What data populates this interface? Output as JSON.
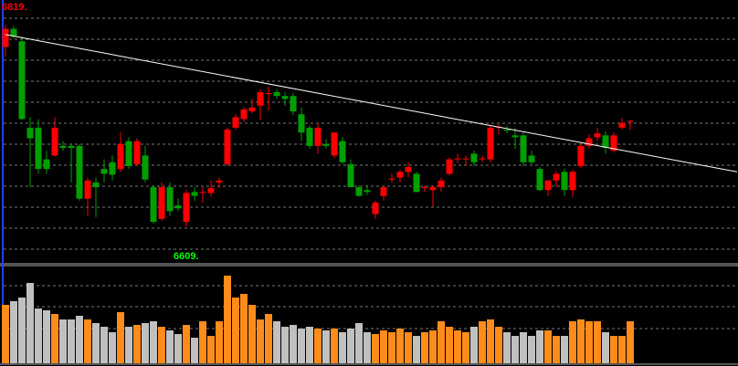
{
  "chart_data": {
    "type": "candlestick",
    "up_color": "#ff0000",
    "down_color": "#00a000",
    "volume_up_color": "#ff8c1a",
    "volume_down_color": "#c0c0c0",
    "trend_color": "#ffffff",
    "annotations": [
      {
        "text": "6819.",
        "color": "#ff0000"
      },
      {
        "text": "6609.",
        "color": "#00ff00"
      }
    ],
    "ylim": [
      6575,
      6845
    ],
    "vlim": [
      0,
      105
    ],
    "ohlc": [
      [
        6796,
        6819,
        6786,
        6815
      ],
      [
        6815,
        6818,
        6805,
        6807
      ],
      [
        6802,
        6807,
        6720,
        6721
      ],
      [
        6712,
        6723,
        6650,
        6701
      ],
      [
        6712,
        6721,
        6664,
        6669
      ],
      [
        6679,
        6688,
        6664,
        6669
      ],
      [
        6683,
        6723,
        6682,
        6712
      ],
      [
        6693,
        6698,
        6688,
        6691
      ],
      [
        6693,
        6695,
        6655,
        6691
      ],
      [
        6693,
        6695,
        6636,
        6638
      ],
      [
        6638,
        6660,
        6620,
        6657
      ],
      [
        6655,
        6660,
        6619,
        6650
      ],
      [
        6669,
        6679,
        6655,
        6664
      ],
      [
        6676,
        6683,
        6657,
        6663
      ],
      [
        6669,
        6707,
        6666,
        6695
      ],
      [
        6698,
        6702,
        6669,
        6672
      ],
      [
        6674,
        6701,
        6672,
        6698
      ],
      [
        6683,
        6693,
        6655,
        6658
      ],
      [
        6650,
        6652,
        6612,
        6614
      ],
      [
        6617,
        6655,
        6615,
        6650
      ],
      [
        6650,
        6655,
        6620,
        6625
      ],
      [
        6631,
        6638,
        6625,
        6628
      ],
      [
        6614,
        6647,
        6609,
        6644
      ],
      [
        6645,
        6650,
        6636,
        6641
      ],
      [
        6644,
        6650,
        6634,
        6645
      ],
      [
        6644,
        6657,
        6640,
        6649
      ],
      [
        6655,
        6660,
        6649,
        6657
      ],
      [
        6674,
        6712,
        6672,
        6710
      ],
      [
        6712,
        6726,
        6710,
        6723
      ],
      [
        6721,
        6733,
        6718,
        6731
      ],
      [
        6729,
        6742,
        6727,
        6733
      ],
      [
        6735,
        6752,
        6720,
        6749
      ],
      [
        6747,
        6755,
        6730,
        6748
      ],
      [
        6749,
        6752,
        6742,
        6745
      ],
      [
        6745,
        6749,
        6735,
        6742
      ],
      [
        6745,
        6748,
        6725,
        6729
      ],
      [
        6726,
        6733,
        6698,
        6707
      ],
      [
        6712,
        6714,
        6690,
        6693
      ],
      [
        6693,
        6717,
        6685,
        6712
      ],
      [
        6695,
        6700,
        6690,
        6693
      ],
      [
        6683,
        6707,
        6680,
        6707
      ],
      [
        6698,
        6702,
        6674,
        6676
      ],
      [
        6674,
        6679,
        6650,
        6650
      ],
      [
        6650,
        6652,
        6640,
        6641
      ],
      [
        6647,
        6652,
        6642,
        6645
      ],
      [
        6622,
        6636,
        6617,
        6634
      ],
      [
        6641,
        6650,
        6636,
        6650
      ],
      [
        6658,
        6664,
        6655,
        6659
      ],
      [
        6660,
        6668,
        6655,
        6666
      ],
      [
        6666,
        6676,
        6660,
        6671
      ],
      [
        6664,
        6666,
        6645,
        6645
      ],
      [
        6649,
        6652,
        6645,
        6650
      ],
      [
        6647,
        6652,
        6630,
        6650
      ],
      [
        6650,
        6660,
        6645,
        6657
      ],
      [
        6664,
        6681,
        6662,
        6679
      ],
      [
        6679,
        6685,
        6675,
        6680
      ],
      [
        6679,
        6683,
        6672,
        6680
      ],
      [
        6685,
        6688,
        6672,
        6676
      ],
      [
        6679,
        6683,
        6676,
        6680
      ],
      [
        6679,
        6715,
        6676,
        6712
      ],
      [
        6712,
        6716,
        6705,
        6713
      ],
      [
        6710,
        6714,
        6706,
        6709
      ],
      [
        6704,
        6712,
        6690,
        6702
      ],
      [
        6704,
        6707,
        6672,
        6676
      ],
      [
        6683,
        6688,
        6674,
        6676
      ],
      [
        6669,
        6671,
        6646,
        6647
      ],
      [
        6647,
        6657,
        6641,
        6657
      ],
      [
        6657,
        6667,
        6650,
        6664
      ],
      [
        6666,
        6669,
        6641,
        6647
      ],
      [
        6647,
        6668,
        6640,
        6666
      ],
      [
        6672,
        6697,
        6670,
        6693
      ],
      [
        6693,
        6705,
        6690,
        6701
      ],
      [
        6702,
        6712,
        6698,
        6706
      ],
      [
        6704,
        6708,
        6685,
        6691
      ],
      [
        6688,
        6707,
        6686,
        6704
      ],
      [
        6712,
        6722,
        6710,
        6717
      ],
      [
        6718,
        6720,
        6710,
        6719
      ]
    ],
    "volume": [
      64,
      68,
      72,
      88,
      60,
      58,
      54,
      48,
      48,
      52,
      48,
      44,
      40,
      34,
      56,
      40,
      42,
      44,
      46,
      40,
      36,
      32,
      42,
      28,
      46,
      30,
      46,
      96,
      72,
      76,
      64,
      48,
      54,
      46,
      40,
      42,
      38,
      40,
      38,
      36,
      38,
      34,
      38,
      44,
      34,
      32,
      36,
      34,
      38,
      34,
      30,
      34,
      36,
      46,
      40,
      36,
      34,
      40,
      46,
      48,
      40,
      34,
      30,
      34,
      30,
      36,
      36,
      30,
      30,
      46,
      48,
      46,
      46,
      34,
      30,
      30,
      46
    ],
    "trendline": {
      "from": {
        "index": 0,
        "value": 6809
      },
      "to": {
        "index": 89,
        "value": 6666
      }
    }
  }
}
